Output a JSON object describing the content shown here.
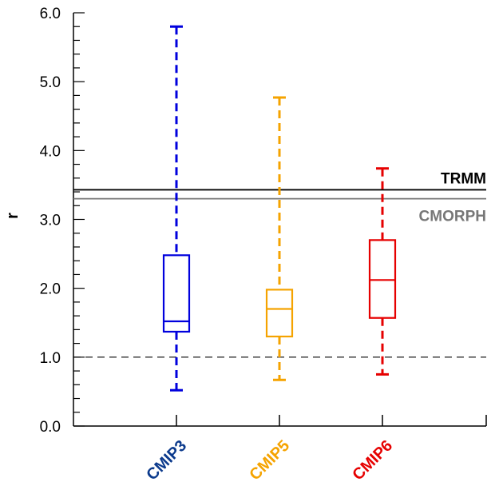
{
  "chart_data": {
    "type": "box",
    "ylabel": "r",
    "ylim": [
      0,
      6
    ],
    "yticks": [
      "0.0",
      "1.0",
      "2.0",
      "3.0",
      "4.0",
      "5.0",
      "6.0"
    ],
    "grid": false,
    "categories": [
      "CMIP3",
      "CMIP5",
      "CMIP6"
    ],
    "boxes": [
      {
        "label": "CMIP3",
        "color": "#0000dd",
        "label_color": "#0b3a8c",
        "min": 0.52,
        "q1": 1.37,
        "median": 1.52,
        "q3": 2.48,
        "max": 5.8
      },
      {
        "label": "CMIP5",
        "color": "#f5a300",
        "label_color": "#f5a300",
        "min": 0.67,
        "q1": 1.3,
        "median": 1.7,
        "q3": 1.98,
        "max": 4.77
      },
      {
        "label": "CMIP6",
        "color": "#e60000",
        "label_color": "#e60000",
        "min": 0.75,
        "q1": 1.57,
        "median": 2.12,
        "q3": 2.7,
        "max": 3.74
      }
    ],
    "reference_lines": [
      {
        "label": "TRMM",
        "value": 3.43,
        "color": "#000000"
      },
      {
        "label": "CMORPH",
        "value": 3.3,
        "color": "#777777"
      }
    ],
    "baseline": {
      "value": 1.0,
      "style": "dashed",
      "color": "#000000"
    }
  }
}
